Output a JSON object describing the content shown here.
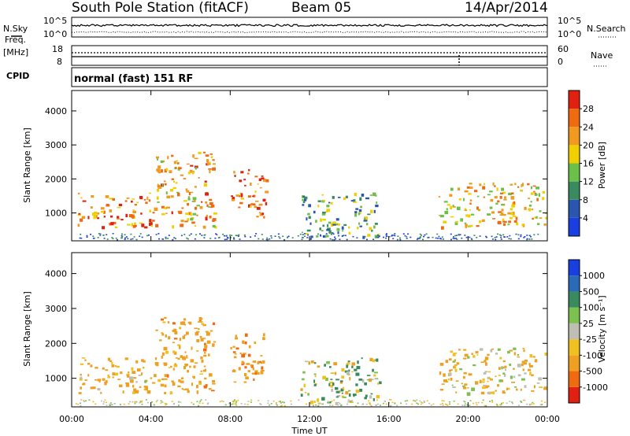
{
  "header": {
    "station": "South Pole Station (fitACF)",
    "beam": "Beam 05",
    "date": "14/Apr/2014"
  },
  "noise_panel": {
    "left_label": "N.Sky",
    "right_label": "N.Search",
    "y_ticks": [
      "10^5",
      "10^0"
    ]
  },
  "freq_panel": {
    "left_label_1": "Freq.",
    "left_label_2": "[MHz]",
    "left_ticks": [
      "18",
      "8"
    ],
    "right_label": "Nave",
    "right_ticks": [
      "60",
      "0"
    ],
    "cpid_label": "CPID",
    "mode": "normal (fast) 151 RF"
  },
  "power_panel": {
    "ylabel": "Slant Range [km]",
    "y_ticks": [
      "4000",
      "3000",
      "2000",
      "1000"
    ],
    "colorbar_label": "Power [dB]",
    "colorbar_ticks": [
      "28",
      "24",
      "20",
      "16",
      "12",
      "8",
      "4"
    ],
    "colors": [
      "#1a3fe0",
      "#2a56b0",
      "#3a8a60",
      "#6cc04a",
      "#f0d000",
      "#f09a20",
      "#f06a10",
      "#e02010"
    ]
  },
  "velocity_panel": {
    "ylabel": "Slant Range [km]",
    "y_ticks": [
      "4000",
      "3000",
      "2000",
      "1000"
    ],
    "colorbar_label": "Velocity [m s⁻¹]",
    "colorbar_ticks": [
      "1000",
      "500",
      "100",
      "25",
      "-25",
      "-100",
      "-500",
      "-1000"
    ],
    "colors": [
      "#1a3fe0",
      "#2a6ab8",
      "#3a8a60",
      "#7cc050",
      "#bebeb4",
      "#f0c020",
      "#f0a020",
      "#f06a10",
      "#e02010"
    ]
  },
  "time_axis": {
    "label": "Time UT",
    "ticks": [
      "00:00",
      "04:00",
      "08:00",
      "12:00",
      "16:00",
      "20:00",
      "00:00"
    ]
  },
  "chart_data": {
    "type": "heatmap",
    "title": "South Pole Station (fitACF)   Beam 05   14/Apr/2014",
    "xlabel": "Time UT",
    "ylabel": "Slant Range [km]",
    "x_range_hours": [
      0,
      24
    ],
    "y_range_km": [
      180,
      4600
    ],
    "backscatter_regions": [
      {
        "t_start": 0.3,
        "t_end": 4.2,
        "range_low": 600,
        "range_high": 1600,
        "power_db": 22,
        "velocity": -200
      },
      {
        "t_start": 4.2,
        "t_end": 7.2,
        "range_low": 600,
        "range_high": 2800,
        "power_db": 20,
        "velocity": -300
      },
      {
        "t_start": 8.0,
        "t_end": 9.8,
        "range_low": 900,
        "range_high": 2300,
        "power_db": 24,
        "velocity": -400
      },
      {
        "t_start": 11.5,
        "t_end": 15.5,
        "range_low": 300,
        "range_high": 1600,
        "power_db": 10,
        "velocity": 50
      },
      {
        "t_start": 18.5,
        "t_end": 23.9,
        "range_low": 600,
        "range_high": 1900,
        "power_db": 18,
        "velocity": -150
      }
    ]
  }
}
